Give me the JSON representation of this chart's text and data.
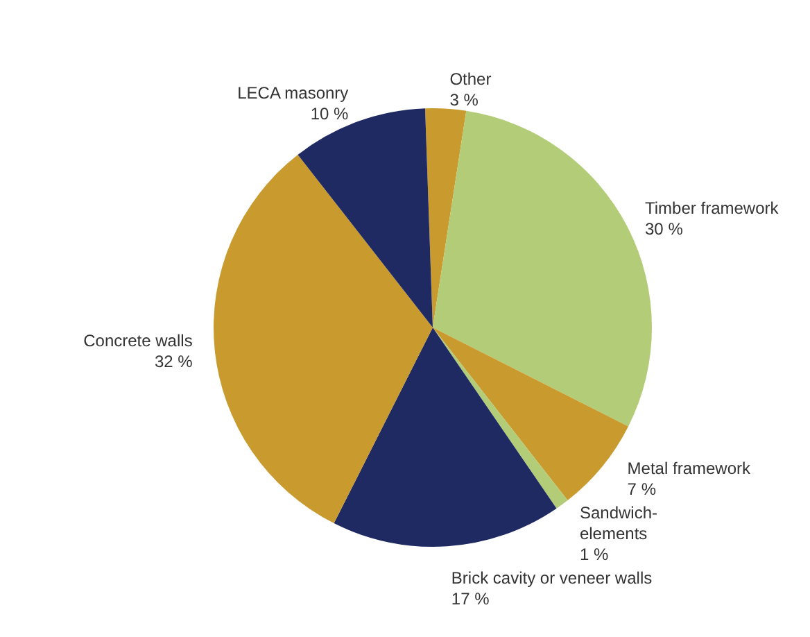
{
  "chart_data": {
    "type": "pie",
    "categories": [
      "Other",
      "Timber framework",
      "Metal framework",
      "Sandwich-elements",
      "Brick cavity or veneer walls",
      "Concrete walls",
      "LECA masonry"
    ],
    "values": [
      3,
      30,
      7,
      1,
      17,
      32,
      10
    ],
    "value_labels": [
      "3 %",
      "30 %",
      "7 %",
      "1 %",
      "17 %",
      "32 %",
      "10 %"
    ],
    "colors": [
      "#c99a2e",
      "#b3cc78",
      "#c99a2e",
      "#b3cc78",
      "#1f2a62",
      "#c99a2e",
      "#1f2a62"
    ],
    "legend": false
  }
}
